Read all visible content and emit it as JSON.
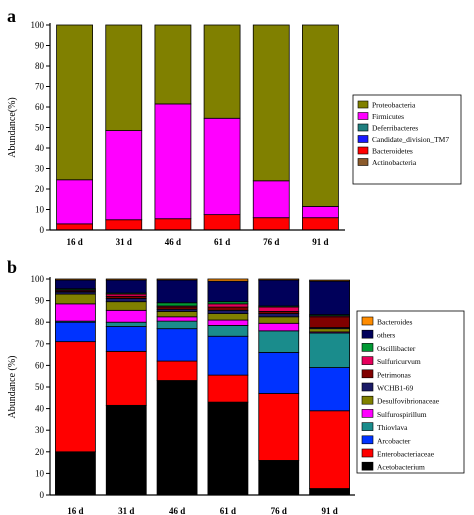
{
  "chart_data": [
    {
      "type": "bar",
      "stacked": true,
      "panel_label": "a",
      "ylabel": "Abundance(%)",
      "categories": [
        "16 d",
        "31 d",
        "46 d",
        "61 d",
        "76 d",
        "91 d"
      ],
      "ylim": [
        0,
        100
      ],
      "yticks": [
        0,
        10,
        20,
        30,
        40,
        50,
        60,
        70,
        80,
        90,
        100
      ],
      "legend_position": "right",
      "legend_order": [
        "Proteobacteria",
        "Firmicutes",
        "Deferribacteres",
        "Candidate_division_TM7",
        "Bacteroidetes",
        "Actinobacteria"
      ],
      "series": [
        {
          "name": "Actinobacteria",
          "color": "#8b5a2b",
          "values": [
            0,
            0,
            0,
            0,
            0,
            0
          ]
        },
        {
          "name": "Bacteroidetes",
          "color": "#ff0000",
          "values": [
            3,
            5,
            5.5,
            7.5,
            6,
            6
          ]
        },
        {
          "name": "Candidate_division_TM7",
          "color": "#1a1aff",
          "values": [
            0,
            0,
            0,
            0,
            0,
            0
          ]
        },
        {
          "name": "Deferribacteres",
          "color": "#1f7f7f",
          "values": [
            0,
            0,
            0,
            0,
            0,
            0
          ]
        },
        {
          "name": "Firmicutes",
          "color": "#ff00ff",
          "values": [
            21.5,
            43.5,
            56,
            47,
            18,
            5.5
          ]
        },
        {
          "name": "Proteobacteria",
          "color": "#808000",
          "values": [
            75.5,
            51.5,
            38.5,
            45.5,
            76,
            88.5
          ]
        }
      ]
    },
    {
      "type": "bar",
      "stacked": true,
      "panel_label": "b",
      "ylabel": "Abundance (%)",
      "categories": [
        "16 d",
        "31 d",
        "46 d",
        "61 d",
        "76 d",
        "91 d"
      ],
      "ylim": [
        0,
        100
      ],
      "yticks": [
        0,
        10,
        20,
        30,
        40,
        50,
        60,
        70,
        80,
        90,
        100
      ],
      "legend_position": "right",
      "legend_order": [
        "Bacteroides",
        "others",
        "Oscillibacter",
        "Sulfuricurvum",
        "Petrimonas",
        "WCHB1-69",
        "Desulfovibrionaceae",
        "Sulfurospirillum",
        "Thiovlava",
        "Arcobacter",
        "Enterobacteriaceae",
        "Acetobacterium"
      ],
      "series": [
        {
          "name": "Acetobacterium",
          "color": "#000000",
          "values": [
            20,
            41.5,
            53,
            43,
            16,
            3
          ]
        },
        {
          "name": "Enterobacteriaceae",
          "color": "#ff0000",
          "values": [
            51,
            25,
            9,
            12.5,
            31,
            36
          ]
        },
        {
          "name": "Arcobacter",
          "color": "#0033ff",
          "values": [
            9,
            11.5,
            15,
            18,
            19,
            20
          ]
        },
        {
          "name": "Thiovlava",
          "color": "#1a8c8c",
          "values": [
            0.5,
            2,
            3.5,
            5,
            10,
            16
          ]
        },
        {
          "name": "Sulfurospirillum",
          "color": "#ff00ff",
          "values": [
            8,
            5.5,
            2,
            2.5,
            3.5,
            0.5
          ]
        },
        {
          "name": "Desulfovibrionaceae",
          "color": "#808000",
          "values": [
            4.5,
            4,
            2.5,
            3,
            3,
            1.5
          ]
        },
        {
          "name": "WCHB1-69",
          "color": "#1a1a66",
          "values": [
            1,
            1.5,
            1,
            1.5,
            1.5,
            0.5
          ]
        },
        {
          "name": "Petrimonas",
          "color": "#800000",
          "values": [
            0.5,
            1,
            1,
            1.5,
            1,
            5
          ]
        },
        {
          "name": "Sulfuricurvum",
          "color": "#e6005c",
          "values": [
            0.5,
            1,
            0.5,
            1.5,
            2,
            0.5
          ]
        },
        {
          "name": "Oscillibacter",
          "color": "#009933",
          "values": [
            0.5,
            0.5,
            1.5,
            1,
            0.5,
            0.5
          ]
        },
        {
          "name": "others",
          "color": "#00005a",
          "values": [
            4,
            6,
            10.5,
            9.5,
            12,
            15.5
          ]
        },
        {
          "name": "Bacteroides",
          "color": "#ff8c00",
          "values": [
            0.5,
            0.5,
            0.5,
            1,
            0.5,
            0.5
          ]
        }
      ]
    }
  ]
}
